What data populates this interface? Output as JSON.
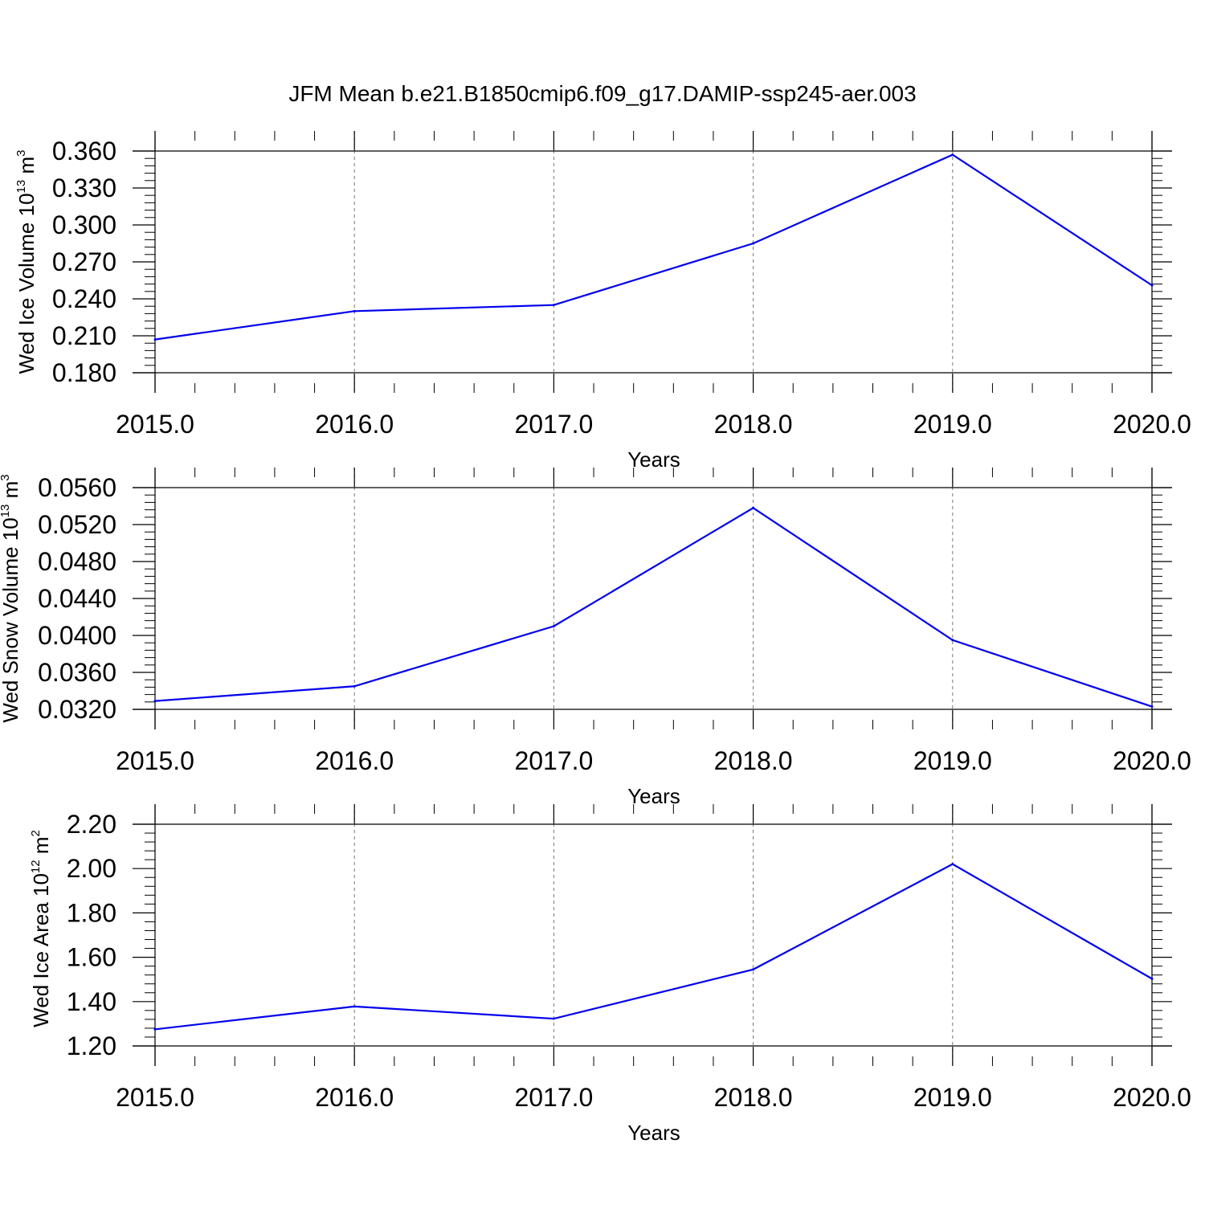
{
  "title": "JFM Mean b.e21.B1850cmip6.f09_g17.DAMIP-ssp245-aer.003",
  "colors": {
    "series": "#0000ee",
    "axes": "#000000",
    "grid": "#777777"
  },
  "chart_data": [
    {
      "type": "line",
      "ylabel": {
        "text": "Wed Ice Volume 10",
        "exp": "13",
        "unit": " m",
        "unit_exp": "3"
      },
      "xlabel": "Years",
      "x": [
        2015,
        2016,
        2017,
        2018,
        2019,
        2020
      ],
      "x_tick_labels": [
        "2015.0",
        "2016.0",
        "2017.0",
        "2018.0",
        "2019.0",
        "2020.0"
      ],
      "values": [
        0.207,
        0.23,
        0.235,
        0.285,
        0.357,
        0.251
      ],
      "y_ticks": [
        0.18,
        0.21,
        0.24,
        0.27,
        0.3,
        0.33,
        0.36
      ],
      "y_tick_labels": [
        "0.180",
        "0.210",
        "0.240",
        "0.270",
        "0.300",
        "0.330",
        "0.360"
      ],
      "ylim": [
        0.18,
        0.36
      ],
      "xlim": [
        2015,
        2020
      ],
      "grid": "vertical dashed"
    },
    {
      "type": "line",
      "ylabel": {
        "text": "Wed Snow Volume 10",
        "exp": "13",
        "unit": " m",
        "unit_exp": "3"
      },
      "xlabel": "Years",
      "x": [
        2015,
        2016,
        2017,
        2018,
        2019,
        2020
      ],
      "x_tick_labels": [
        "2015.0",
        "2016.0",
        "2017.0",
        "2018.0",
        "2019.0",
        "2020.0"
      ],
      "values": [
        0.0329,
        0.0345,
        0.041,
        0.0538,
        0.0395,
        0.0323
      ],
      "y_ticks": [
        0.032,
        0.036,
        0.04,
        0.044,
        0.048,
        0.052,
        0.056
      ],
      "y_tick_labels": [
        "0.0320",
        "0.0360",
        "0.0400",
        "0.0440",
        "0.0480",
        "0.0520",
        "0.0560"
      ],
      "ylim": [
        0.032,
        0.056
      ],
      "xlim": [
        2015,
        2020
      ],
      "grid": "vertical dashed"
    },
    {
      "type": "line",
      "ylabel": {
        "text": "Wed Ice Area 10",
        "exp": "12",
        "unit": " m",
        "unit_exp": "2"
      },
      "xlabel": "Years",
      "x": [
        2015,
        2016,
        2017,
        2018,
        2019,
        2020
      ],
      "x_tick_labels": [
        "2015.0",
        "2016.0",
        "2017.0",
        "2018.0",
        "2019.0",
        "2020.0"
      ],
      "values": [
        1.275,
        1.378,
        1.323,
        1.545,
        2.02,
        1.503
      ],
      "y_ticks": [
        1.2,
        1.4,
        1.6,
        1.8,
        2.0,
        2.2
      ],
      "y_tick_labels": [
        "1.20",
        "1.40",
        "1.60",
        "1.80",
        "2.00",
        "2.20"
      ],
      "ylim": [
        1.2,
        2.2
      ],
      "xlim": [
        2015,
        2020
      ],
      "grid": "vertical dashed"
    }
  ]
}
